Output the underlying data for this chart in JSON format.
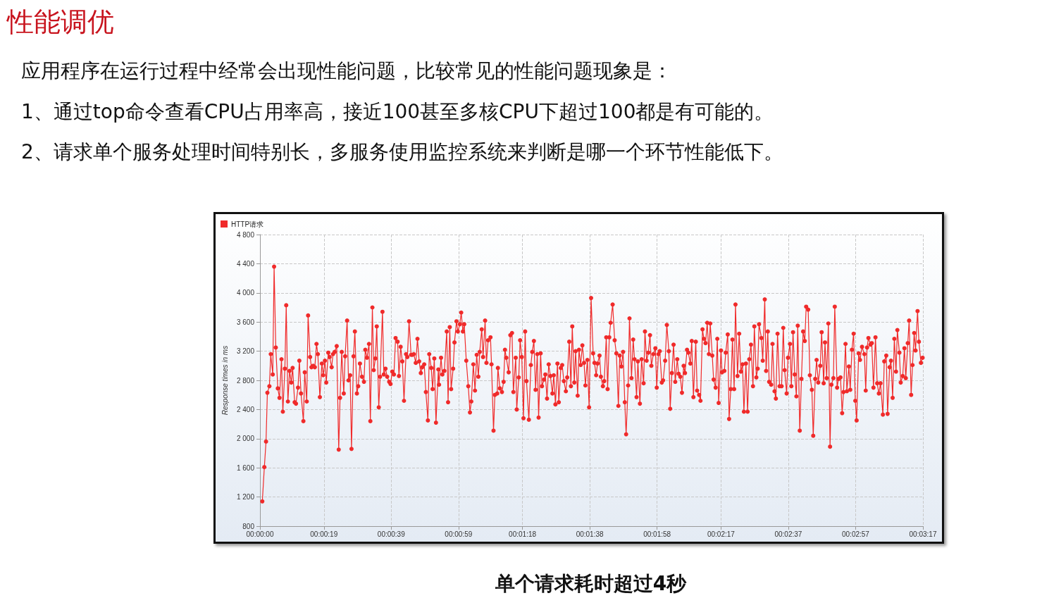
{
  "chart_data": {
    "type": "line",
    "title": "性能调优",
    "annotations": [
      "应用程序在运行过程中经常会出现性能问题，比较常见的性能问题现象是：",
      "1、通过top命令查看CPU占用率高，接近100甚至多核CPU下超过100都是有可能的。",
      "2、请求单个服务处理时间特别长，多服务使用监控系统来判断是哪一个环节性能低下。",
      "单个请求耗时超过4秒"
    ],
    "ylabel": "Response times in ms",
    "x": [
      0.7,
      1.3,
      1.8,
      2.2,
      2.8,
      3.2,
      3.8,
      4.2,
      4.7,
      5.3,
      5.8,
      6.4,
      6.8,
      7.4,
      7.8,
      8.3,
      8.8,
      9.3,
      9.7,
      10.3,
      10.7,
      11.3,
      11.7,
      12.2,
      12.9,
      13.3,
      13.9,
      14.3,
      14.9,
      15.3,
      15.8,
      16.3,
      16.8,
      17.2,
      17.8,
      18.4,
      18.8,
      19.3,
      19.7,
      20.3,
      20.7,
      21.3,
      21.7,
      22.2,
      22.8,
      23.4,
      23.8,
      24.3,
      24.9,
      25.3,
      25.9,
      26.3,
      26.8,
      27.2,
      27.8,
      28.2,
      28.8,
      29.2,
      29.7,
      30.3,
      30.9,
      31.3,
      31.8,
      32.4,
      32.8,
      33.4,
      33.8,
      34.3,
      34.7,
      35.3,
      35.7,
      36.4,
      36.8,
      37.3,
      37.8,
      38.4,
      38.8,
      39.3,
      39.8,
      40.3,
      40.9,
      41.3,
      41.8,
      42.3,
      42.8,
      43.4,
      43.8,
      44.3,
      44.9,
      45.3,
      45.7,
      46.3,
      46.8,
      47.3,
      47.8,
      48.2,
      48.8,
      49.3,
      49.9,
      50.3,
      50.9,
      51.3,
      51.8,
      52.3,
      53.0,
      53.2,
      53.8,
      54.2,
      54.8,
      55.5,
      55.9,
      56.4,
      56.8,
      57.4,
      57.8,
      58.4,
      58.8,
      59.4,
      59.8,
      60.3,
      60.7,
      61.3,
      61.9,
      62.4,
      62.8,
      63.4,
      63.9,
      64.4,
      64.9,
      65.3,
      65.9,
      66.3,
      66.9,
      67.3,
      67.8,
      68.5,
      68.8,
      69.4,
      69.8,
      70.5,
      70.7,
      71.3,
      71.9,
      72.4,
      72.8,
      73.2,
      73.9,
      74.4,
      74.9,
      75.3,
      76.0,
      76.3,
      76.9,
      77.3,
      77.8,
      78.3,
      78.8,
      79.2,
      79.9,
      80.5,
      80.9,
      81.4,
      81.9,
      82.4,
      82.8,
      83.4,
      83.8,
      84.4,
      84.8,
      85.3,
      85.8,
      86.3,
      86.9,
      87.3,
      87.8,
      88.4,
      88.8,
      89.4,
      89.8,
      90.3,
      90.9,
      91.3,
      91.9,
      92.4,
      92.8,
      93.4,
      93.8,
      94.4,
      94.8,
      95.3,
      95.8,
      96.3,
      96.7,
      97.3,
      97.8,
      98.4,
      99.0,
      99.4,
      99.9,
      100.3,
      100.9,
      101.3,
      101.9,
      102.3,
      102.9,
      103.3,
      103.8,
      104.2,
      104.8,
      105.4,
      105.9,
      106.5,
      106.9,
      107.4,
      107.9,
      108.4,
      108.8,
      109.4,
      109.8,
      110.4,
      110.9,
      111.3,
      111.9,
      112.3,
      112.9,
      113.4,
      114.0,
      114.4,
      114.9,
      115.4,
      115.9,
      116.3,
      116.9,
      117.5,
      117.9,
      118.4,
      118.8,
      119.4,
      119.8,
      120.4,
      120.9,
      121.5,
      121.9,
      122.4,
      122.9,
      123.4,
      124.0,
      124.4,
      124.9,
      125.4,
      125.9,
      126.3,
      126.9,
      127.3,
      127.9,
      128.3,
      128.8,
      129.5,
      129.9,
      130.5,
      130.9,
      131.5,
      131.9,
      132.4,
      132.9,
      133.4,
      133.8,
      134.4,
      134.8,
      135.4,
      135.9,
      136.3,
      137.0,
      137.3,
      138.0,
      138.4,
      139.0,
      139.4,
      139.9,
      140.4,
      140.9,
      141.3,
      141.9,
      142.4,
      142.9,
      143.4,
      143.8,
      144.4,
      144.9,
      145.4,
      145.9,
      146.5,
      146.9,
      147.5,
      147.9,
      148.3,
      149.0,
      149.4,
      150.0,
      150.4,
      150.9,
      151.3,
      151.9,
      152.3,
      152.9,
      153.3,
      153.8,
      154.4,
      155.0,
      155.5,
      155.9,
      156.5,
      156.9,
      157.5,
      157.9,
      158.4,
      158.9,
      159.4,
      159.8,
      160.4,
      160.9,
      161.4,
      161.9,
      162.3,
      162.9,
      163.4,
      164.0,
      164.4,
      165.0,
      165.4,
      165.9,
      166.5,
      166.9,
      167.5,
      167.9,
      168.4,
      168.9,
      169.4,
      169.8,
      170.4,
      170.8,
      171.5,
      171.9,
      172.5,
      173.0,
      173.4,
      174.0,
      174.4,
      175.0,
      175.4,
      175.9,
      176.4,
      176.9,
      177.3,
      177.9,
      178.3,
      178.9,
      179.6,
      180.0,
      180.4,
      180.8,
      181.4,
      181.8,
      182.3,
      182.9,
      183.4,
      183.9,
      184.4,
      185.1,
      185.5,
      186.1,
      186.5,
      187.1,
      187.5,
      188.0,
      188.5,
      189.0,
      189.4,
      190.0,
      190.4,
      191.0,
      191.5,
      191.9,
      192.5,
      192.9,
      193.5,
      193.9,
      194.4,
      194.8,
      195.4,
      195.8,
      196.4,
      196.9
    ],
    "series": [
      {
        "name": "HTTP请求",
        "color": "#f02a2a",
        "values": [
          1140,
          1610,
          1960,
          2630,
          2720,
          3160,
          2880,
          4360,
          3250,
          2690,
          2560,
          3090,
          2370,
          2960,
          3830,
          2510,
          2930,
          2770,
          2970,
          2500,
          2480,
          2700,
          3070,
          2620,
          2240,
          2910,
          2510,
          3690,
          3120,
          2980,
          3000,
          2980,
          3300,
          3160,
          2570,
          3030,
          2870,
          3070,
          2770,
          3180,
          3120,
          2980,
          3160,
          3190,
          3270,
          1850,
          2560,
          3190,
          2620,
          3130,
          3620,
          2800,
          2870,
          1860,
          3130,
          3470,
          2620,
          2720,
          3030,
          2850,
          2780,
          3220,
          3110,
          3300,
          2240,
          3800,
          2940,
          3100,
          3540,
          2430,
          2850,
          3740,
          2880,
          2960,
          2850,
          2780,
          2750,
          2920,
          2880,
          3380,
          3330,
          2860,
          3260,
          3060,
          2520,
          3160,
          3120,
          3610,
          3150,
          3150,
          3160,
          3040,
          3370,
          3060,
          2900,
          2980,
          3020,
          2640,
          2250,
          3160,
          2970,
          2680,
          3100,
          2220,
          2950,
          2740,
          3110,
          2880,
          2930,
          3470,
          2500,
          3530,
          2680,
          2960,
          3320,
          3610,
          3470,
          3570,
          3730,
          3470,
          3570,
          3070,
          2720,
          2360,
          2510,
          3020,
          2660,
          3150,
          2850,
          3190,
          3500,
          3120,
          3620,
          3040,
          3350,
          3390,
          3020,
          2110,
          2600,
          2620,
          2970,
          2690,
          2640,
          2780,
          3220,
          3110,
          2910,
          3420,
          3450,
          2640,
          3110,
          2400,
          2840,
          3350,
          3120,
          2280,
          3470,
          2790,
          2260,
          3010,
          3190,
          3340,
          2670,
          3160,
          2290,
          3170,
          2720,
          2810,
          2880,
          2550,
          3020,
          2860,
          2620,
          2870,
          2470,
          3030,
          2500,
          2970,
          3010,
          2790,
          2650,
          2840,
          3330,
          2720,
          3540,
          2770,
          3200,
          2590,
          3220,
          3010,
          3280,
          3040,
          2730,
          3080,
          2430,
          3930,
          3170,
          3040,
          2870,
          3030,
          3140,
          2850,
          2720,
          2790,
          3390,
          2680,
          3390,
          3590,
          3840,
          3350,
          3170,
          2450,
          3140,
          2990,
          3190,
          2500,
          2060,
          2730,
          3650,
          2830,
          3360,
          3090,
          2570,
          3060,
          2480,
          3090,
          2760,
          3470,
          3070,
          3180,
          3420,
          3000,
          3160,
          3240,
          2700,
          3160,
          3200,
          2770,
          2800,
          3070,
          3560,
          3200,
          2410,
          2900,
          3290,
          2780,
          3090,
          2890,
          2850,
          2630,
          3000,
          2900,
          3220,
          3180,
          3030,
          3340,
          2570,
          3330,
          2660,
          2600,
          2520,
          3500,
          3370,
          3310,
          3590,
          3160,
          3580,
          3140,
          2810,
          2700,
          3370,
          2490,
          3210,
          2910,
          2930,
          3180,
          3430,
          2270,
          2680,
          3360,
          2680,
          3840,
          2860,
          3440,
          2920,
          3020,
          2370,
          3030,
          2370,
          3090,
          3290,
          2720,
          3540,
          2840,
          2960,
          3570,
          3380,
          3070,
          3910,
          2930,
          3470,
          2780,
          2740,
          3300,
          2650,
          2550,
          3440,
          2720,
          2720,
          3520,
          2940,
          2620,
          3110,
          3300,
          2720,
          3460,
          2880,
          2580,
          3550,
          2110,
          2820,
          3470,
          3340,
          3810,
          3770,
          2870,
          2670,
          2040,
          2820,
          3080,
          2770,
          3000,
          3460,
          2760,
          3320,
          2830,
          3580,
          1890,
          2740,
          2830,
          3810,
          2700,
          2820,
          2840,
          2350,
          2640,
          3300,
          2650,
          2990,
          2670,
          3220,
          3440,
          2520,
          2250,
          3170,
          3080,
          3260,
          3160,
          2660,
          3250,
          3380,
          3290,
          3310,
          2700,
          3390,
          2760,
          2620,
          2760,
          2330,
          3060,
          3140,
          2340,
          2980,
          3070,
          2560,
          3370,
          2920,
          3490,
          3180,
          2770,
          2860,
          3240,
          2830,
          3310,
          3620,
          2600,
          3010,
          3450,
          3210,
          3750,
          3330,
          3040,
          3110
        ]
      }
    ],
    "xlim": [
      0,
      197
    ],
    "xticks": [
      {
        "value": 0,
        "label": "00:00:00"
      },
      {
        "value": 19,
        "label": "00:00:19"
      },
      {
        "value": 39,
        "label": "00:00:39"
      },
      {
        "value": 59,
        "label": "00:00:59"
      },
      {
        "value": 78,
        "label": "00:01:18"
      },
      {
        "value": 98,
        "label": "00:01:38"
      },
      {
        "value": 118,
        "label": "00:01:58"
      },
      {
        "value": 137,
        "label": "00:02:17"
      },
      {
        "value": 157,
        "label": "00:02:37"
      },
      {
        "value": 177,
        "label": "00:02:57"
      },
      {
        "value": 197,
        "label": "00:03:17"
      }
    ],
    "ylim": [
      800,
      4800
    ],
    "yticks": [
      {
        "value": 800,
        "label": "800"
      },
      {
        "value": 1200,
        "label": "1 200"
      },
      {
        "value": 1600,
        "label": "1 600"
      },
      {
        "value": 2000,
        "label": "2 000"
      },
      {
        "value": 2400,
        "label": "2 400"
      },
      {
        "value": 2800,
        "label": "2 800"
      },
      {
        "value": 3200,
        "label": "3 200"
      },
      {
        "value": 3600,
        "label": "3 600"
      },
      {
        "value": 4000,
        "label": "4 000"
      },
      {
        "value": 4400,
        "label": "4 400"
      },
      {
        "value": 4800,
        "label": "4 800"
      }
    ],
    "grid": true,
    "legend": "top left",
    "marker": "circle",
    "line_style": "solid"
  }
}
